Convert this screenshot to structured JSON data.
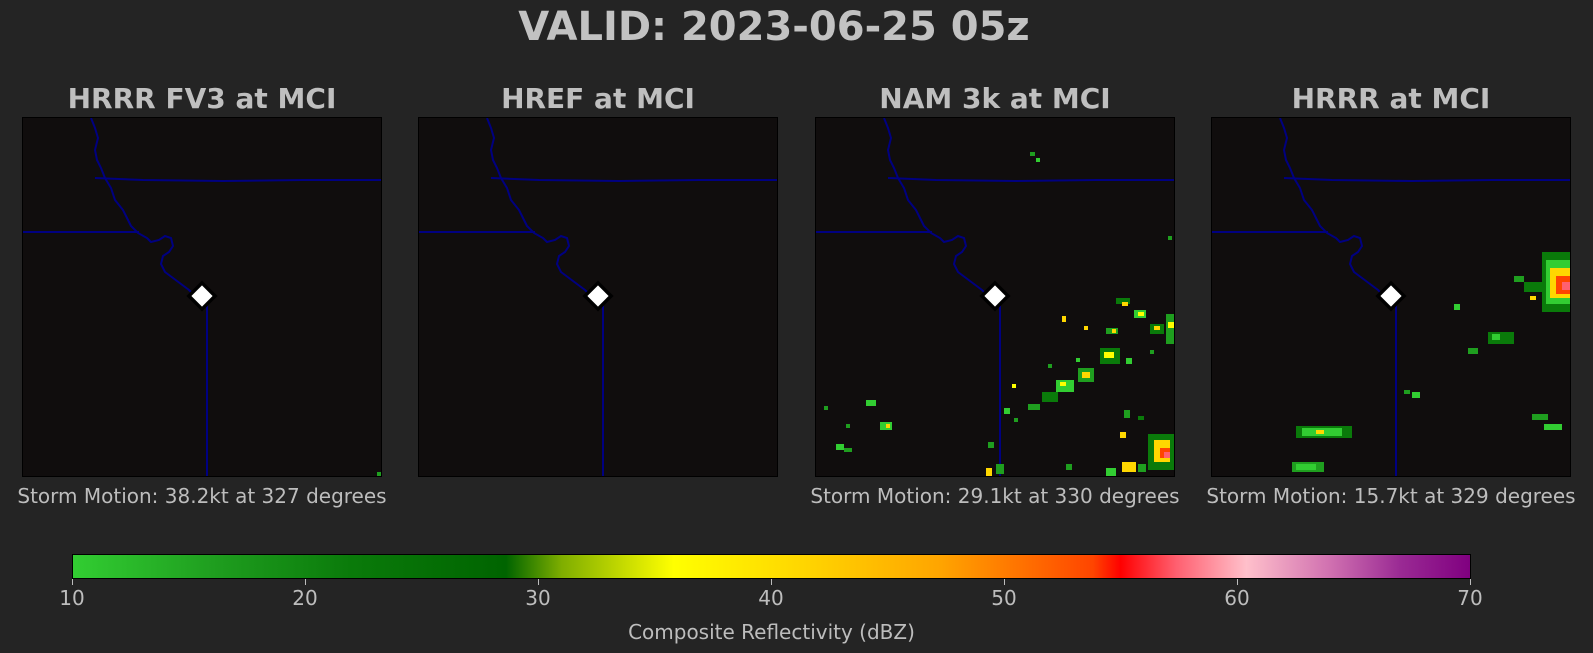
{
  "title": "VALID: 2023-06-25 05z",
  "colors": {
    "background": "#242424",
    "map_background": "#100d0d",
    "border_lines": "#000080",
    "marker": "#ffffff"
  },
  "panels": [
    {
      "title": "HRRR FV3 at MCI",
      "storm_motion": "Storm Motion: 38.2kt at 327 degrees"
    },
    {
      "title": "HREF at MCI",
      "storm_motion": ""
    },
    {
      "title": "NAM 3k at MCI",
      "storm_motion": "Storm Motion: 29.1kt at 330 degrees"
    },
    {
      "title": "HRRR at MCI",
      "storm_motion": "Storm Motion: 15.7kt at 329 degrees"
    }
  ],
  "colorbar": {
    "label": "Composite Reflectivity (dBZ)",
    "min": 10,
    "max": 70,
    "ticks": [
      "10",
      "20",
      "30",
      "40",
      "50",
      "60",
      "70"
    ]
  }
}
